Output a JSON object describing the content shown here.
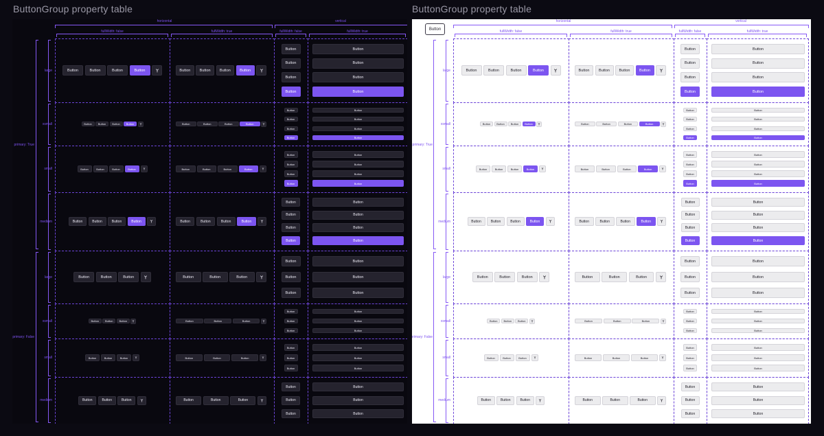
{
  "titles": {
    "dark": "ButtonGroup property table",
    "light": "ButtonGroup property table"
  },
  "standalone_button": "Button",
  "headers": {
    "orientation": [
      "horizontal",
      "vertical"
    ],
    "fullwidth": [
      "fullWidth: false",
      "fullWidth: true",
      "fullWidth: false",
      "fullWidth: true"
    ]
  },
  "primary_groups": [
    "primary: True",
    "primary: False"
  ],
  "sizes": [
    "large",
    "xsmall",
    "small",
    "medium"
  ],
  "button_label": "Button",
  "icon": "split-icon",
  "colors": {
    "accent": "#7c55f0",
    "dark_bg": "#09080f",
    "dark_button": "#25232e",
    "light_bg": "#ffffff",
    "light_button": "#ececee",
    "guide": "#6c44d8"
  }
}
